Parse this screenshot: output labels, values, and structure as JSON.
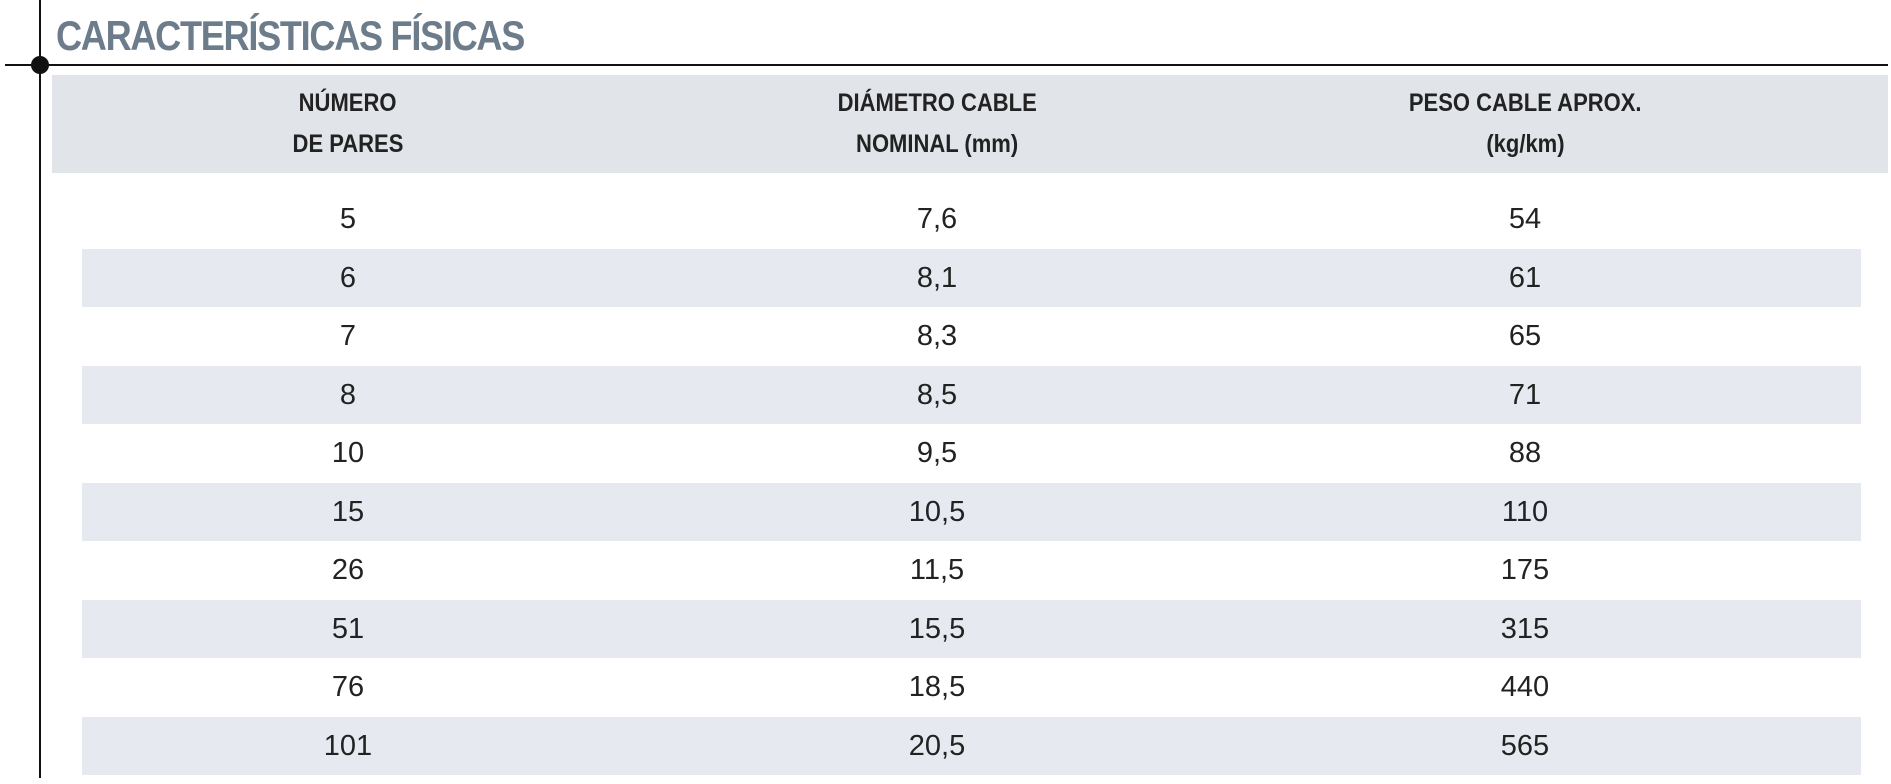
{
  "title": "CARACTERÍSTICAS FÍSICAS",
  "table": {
    "headers": [
      [
        "NÚMERO",
        "DE PARES"
      ],
      [
        "DIÁMETRO CABLE",
        "NOMINAL (mm)"
      ],
      [
        "PESO CABLE APROX.",
        "(kg/km)"
      ]
    ],
    "rows": [
      [
        "5",
        "7,6",
        "54"
      ],
      [
        "6",
        "8,1",
        "61"
      ],
      [
        "7",
        "8,3",
        "65"
      ],
      [
        "8",
        "8,5",
        "71"
      ],
      [
        "10",
        "9,5",
        "88"
      ],
      [
        "15",
        "10,5",
        "110"
      ],
      [
        "26",
        "11,5",
        "175"
      ],
      [
        "51",
        "15,5",
        "315"
      ],
      [
        "76",
        "18,5",
        "440"
      ],
      [
        "101",
        "20,5",
        "565"
      ]
    ]
  }
}
